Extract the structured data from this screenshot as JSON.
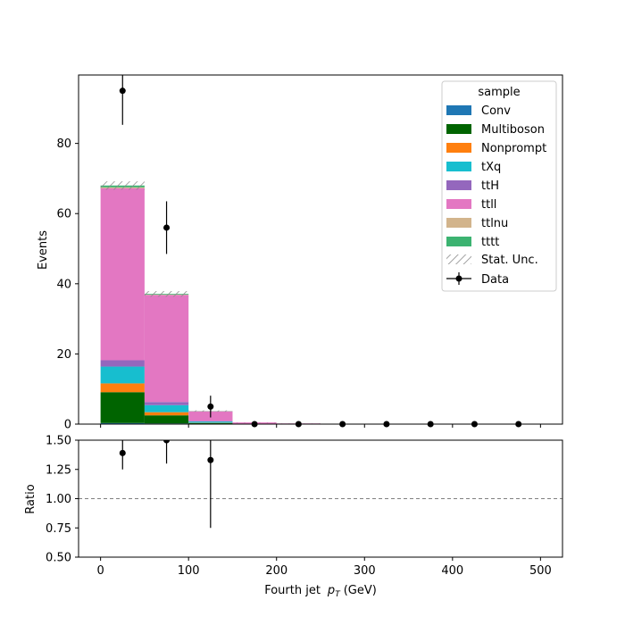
{
  "chart_data": [
    {
      "type": "bar",
      "subtype": "stacked-histogram",
      "bin_edges": [
        0,
        50,
        100,
        150,
        200,
        250,
        300,
        350,
        400,
        450,
        500
      ],
      "xlim": [
        -25,
        525
      ],
      "ylim": [
        0,
        99.5
      ],
      "yticks": [
        0,
        20,
        40,
        60,
        80
      ],
      "ylabel": "Events",
      "legend": {
        "title": "sample",
        "placement": "top-right"
      },
      "series": [
        {
          "name": "Conv",
          "color": "#1f77b4",
          "values": [
            0.3,
            0.2,
            0.05,
            0,
            0,
            0,
            0,
            0,
            0,
            0
          ]
        },
        {
          "name": "Multiboson",
          "color": "#006400",
          "values": [
            8.8,
            2.3,
            0.2,
            0.05,
            0.02,
            0.01,
            0,
            0,
            0,
            0
          ]
        },
        {
          "name": "Nonprompt",
          "color": "#ff7f0e",
          "values": [
            2.5,
            0.9,
            0.1,
            0,
            0,
            0,
            0,
            0,
            0,
            0
          ]
        },
        {
          "name": "tXq",
          "color": "#17becf",
          "values": [
            4.8,
            2.0,
            0.4,
            0.05,
            0.02,
            0,
            0,
            0,
            0,
            0
          ]
        },
        {
          "name": "ttH",
          "color": "#9467bd",
          "values": [
            1.8,
            0.9,
            0.1,
            0.02,
            0,
            0,
            0,
            0,
            0,
            0
          ]
        },
        {
          "name": "ttll",
          "color": "#e377c2",
          "values": [
            49.0,
            30.5,
            2.8,
            0.35,
            0.15,
            0.06,
            0.02,
            0,
            0,
            0
          ]
        },
        {
          "name": "ttlnu",
          "color": "#d2b48c",
          "values": [
            0.3,
            0.1,
            0.02,
            0,
            0,
            0,
            0,
            0,
            0,
            0
          ]
        },
        {
          "name": "tttt",
          "color": "#3cb371",
          "values": [
            0.5,
            0.2,
            0.05,
            0,
            0,
            0,
            0,
            0,
            0,
            0
          ]
        }
      ],
      "stat_unc": {
        "name": "Stat. Unc.",
        "values": [
          1.2,
          0.8,
          0.2,
          0.05,
          0.02,
          0.01,
          0,
          0,
          0,
          0
        ]
      },
      "data": {
        "name": "Data",
        "x": [
          25,
          75,
          125,
          175,
          225,
          275,
          325,
          375,
          425,
          475
        ],
        "y": [
          95,
          56,
          5,
          0,
          0,
          0,
          0,
          0,
          0,
          0
        ],
        "yerr": [
          9.7,
          7.5,
          3.1,
          0,
          0,
          0,
          0,
          0,
          0,
          0
        ]
      }
    },
    {
      "type": "scatter",
      "subtype": "ratio",
      "xlim": [
        -25,
        525
      ],
      "xticks": [
        0,
        100,
        200,
        300,
        400,
        500
      ],
      "ylim": [
        0.5,
        1.5
      ],
      "yticks": [
        "0.50",
        "0.75",
        "1.00",
        "1.25",
        "1.50"
      ],
      "ylabel": "Ratio",
      "xlabel_text": "Fourth jet",
      "xlabel_var": "p",
      "xlabel_sub": "T",
      "xlabel_unit": "(GeV)",
      "reference_line": 1.0,
      "points": [
        {
          "x": 25,
          "y": 1.39,
          "yerr": 0.14
        },
        {
          "x": 75,
          "y": 1.5,
          "yerr": 0.2
        },
        {
          "x": 125,
          "y": 1.33,
          "yerr": 0.58
        }
      ]
    }
  ]
}
